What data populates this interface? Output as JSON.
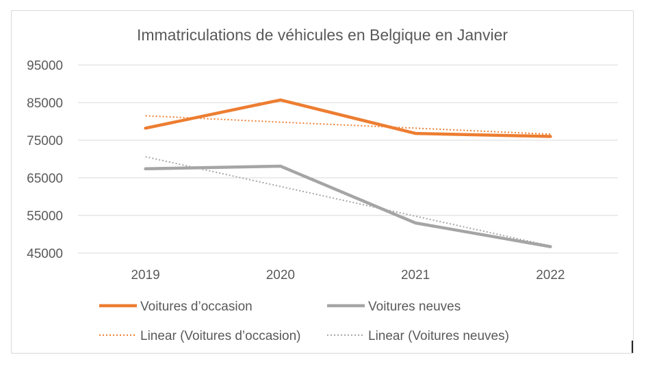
{
  "chart_data": {
    "type": "line",
    "title": "Immatriculations de véhicules en Belgique en Janvier",
    "xlabel": "",
    "ylabel": "",
    "categories": [
      "2019",
      "2020",
      "2021",
      "2022"
    ],
    "ylim": [
      45000,
      95000
    ],
    "yticks": [
      45000,
      55000,
      65000,
      75000,
      85000,
      95000
    ],
    "ytick_labels": [
      "45000",
      "55000",
      "65000",
      "75000",
      "85000",
      "95000"
    ],
    "grid": true,
    "legend_position": "bottom",
    "series": [
      {
        "name": "Voitures d’occasion",
        "values": [
          78200,
          85700,
          76800,
          76000
        ],
        "color": "#ed7d31",
        "style": "solid"
      },
      {
        "name": "Voitures neuves",
        "values": [
          67400,
          68100,
          53000,
          46700
        ],
        "color": "#a5a5a5",
        "style": "solid"
      },
      {
        "name": "Linear (Voitures d’occasion)",
        "values": [
          81500,
          79800,
          78200,
          76600
        ],
        "color": "#ed7d31",
        "style": "dotted"
      },
      {
        "name": "Linear (Voitures neuves)",
        "values": [
          70600,
          62700,
          54800,
          46900
        ],
        "color": "#a5a5a5",
        "style": "dotted"
      }
    ]
  }
}
